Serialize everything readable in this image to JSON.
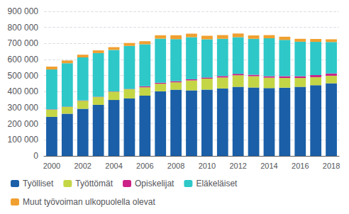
{
  "chart_data": {
    "type": "bar",
    "stacked": true,
    "categories": [
      "2000",
      null,
      "2002",
      null,
      "2004",
      null,
      "2006",
      null,
      "2008",
      null,
      "2010",
      null,
      "2012",
      null,
      "2014",
      null,
      "2016",
      null,
      "2018"
    ],
    "series": [
      {
        "name": "Työlliset",
        "color": "#1a5fa8",
        "values": [
          243000,
          263000,
          293000,
          318000,
          348000,
          358000,
          375000,
          402000,
          412000,
          408000,
          413000,
          420000,
          430000,
          426000,
          422000,
          425000,
          430000,
          440000,
          452000
        ]
      },
      {
        "name": "Työttömät",
        "color": "#c4d645",
        "values": [
          45000,
          42000,
          50000,
          48000,
          52000,
          57000,
          52000,
          47000,
          46000,
          62000,
          68000,
          68000,
          72000,
          70000,
          65000,
          60000,
          55000,
          50000,
          47000
        ]
      },
      {
        "name": "Opiskelijat",
        "color": "#cc2288",
        "values": [
          2000,
          2000,
          2000,
          2000,
          2000,
          2000,
          6000,
          6000,
          7000,
          7000,
          7000,
          9000,
          9000,
          9000,
          9000,
          11000,
          11000,
          13000,
          14000
        ]
      },
      {
        "name": "Eläkeläiset",
        "color": "#2ec8c8",
        "values": [
          248000,
          270000,
          268000,
          272000,
          258000,
          268000,
          262000,
          275000,
          262000,
          262000,
          238000,
          232000,
          228000,
          224000,
          236000,
          226000,
          215000,
          207000,
          196000
        ]
      },
      {
        "name": "Muut työvoiman ulkopuolella olevat",
        "color": "#f0a030",
        "values": [
          18000,
          17000,
          17000,
          17000,
          17000,
          18000,
          19000,
          21000,
          24000,
          22000,
          22000,
          23000,
          23000,
          21000,
          20000,
          20000,
          18000,
          18000,
          17000
        ]
      }
    ],
    "ylim": [
      0,
      900000
    ],
    "yticks": [
      0,
      {
        "value": 100000,
        "label": "100 000"
      },
      {
        "value": 200000,
        "label": "200 000"
      },
      {
        "value": 300000,
        "label": "300 000"
      },
      {
        "value": 400000,
        "label": "400 000"
      },
      {
        "value": 500000,
        "label": "500 000"
      },
      {
        "value": 600000,
        "label": "600 000"
      },
      {
        "value": 700000,
        "label": "700 000"
      },
      {
        "value": 800000,
        "label": "800 000"
      },
      {
        "value": 900000,
        "label": "900 000"
      }
    ],
    "grid": true,
    "legend": "lower left"
  }
}
